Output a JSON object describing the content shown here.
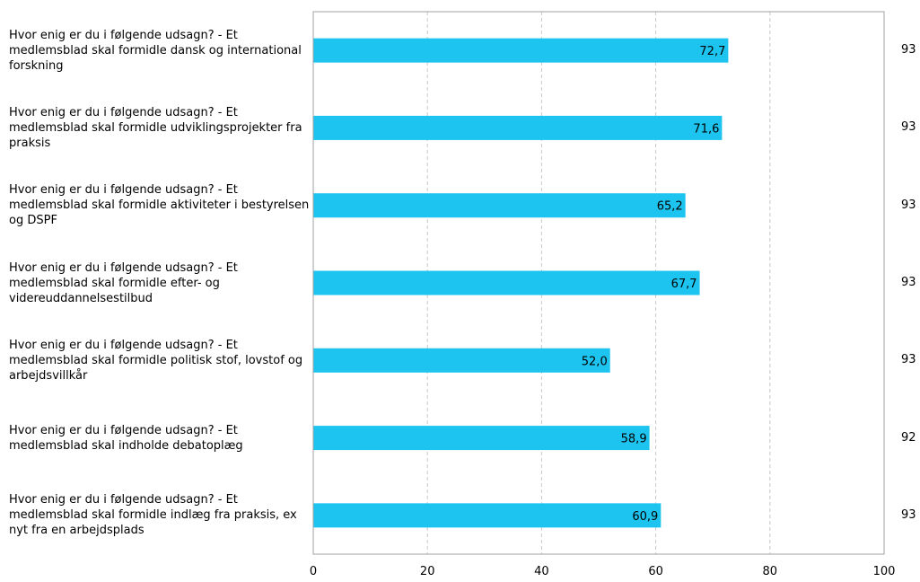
{
  "chart_data": {
    "type": "bar",
    "orientation": "horizontal",
    "categories": [
      "Hvor enig er du i følgende udsagn? - Et medlemsblad skal formidle dansk og international forskning",
      "Hvor enig er du i følgende udsagn? - Et medlemsblad skal formidle udviklingsprojekter fra praksis",
      "Hvor enig er du i følgende udsagn? - Et medlemsblad skal formidle aktiviteter i bestyrelsen og DSPF",
      "Hvor enig er du i følgende udsagn? - Et medlemsblad skal formidle efter- og videreuddannelsestilbud",
      "Hvor enig er du i følgende udsagn? - Et medlemsblad skal formidle politisk stof, lovstof og arbejdsvillkår",
      "Hvor enig er du i følgende udsagn? - Et medlemsblad skal indholde debatoplæg",
      "Hvor enig er du i følgende udsagn? - Et medlemsblad skal formidle indlæg fra praksis, ex nyt fra en arbejdsplads"
    ],
    "values": [
      72.7,
      71.6,
      65.2,
      67.7,
      52.0,
      58.9,
      60.9
    ],
    "value_labels": [
      "72,7",
      "71,6",
      "65,2",
      "67,7",
      "52,0",
      "58,9",
      "60,9"
    ],
    "counts": [
      "93",
      "93",
      "93",
      "93",
      "93",
      "92",
      "93"
    ],
    "xlim": [
      0,
      100
    ],
    "xticks": [
      0,
      20,
      40,
      60,
      80,
      100
    ],
    "xtick_labels": [
      "0",
      "20",
      "40",
      "60",
      "80",
      "100"
    ],
    "grid": true,
    "bar_color": "#1ec4f0",
    "title": "",
    "xlabel": "",
    "ylabel": ""
  }
}
